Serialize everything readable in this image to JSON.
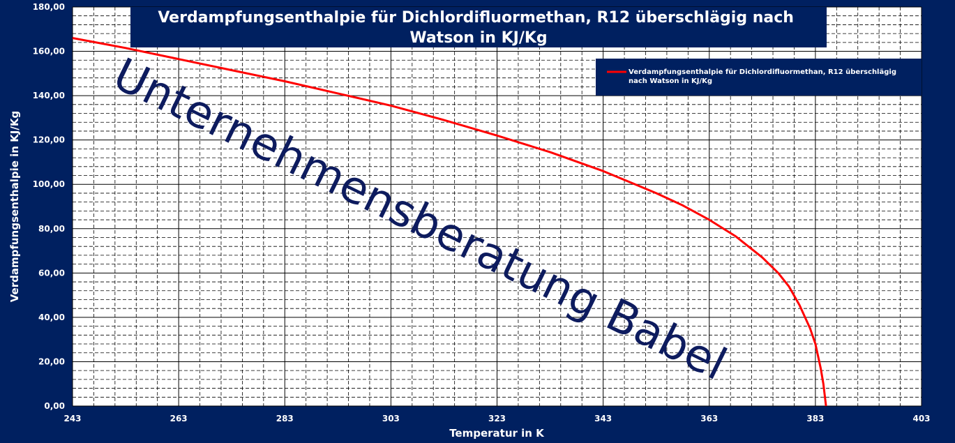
{
  "chart_data": {
    "type": "line",
    "title_lines": [
      "Verdampfungsenthalpie für Dichlordifluormethan, R12 überschlägig nach",
      "Watson in KJ/Kg"
    ],
    "xlabel": "Temperatur in  K",
    "ylabel": "Verdampfungsenthalpie  in KJ/Kg",
    "xlim": [
      243,
      403
    ],
    "ylim": [
      0,
      180
    ],
    "x_ticks": [
      243,
      263,
      283,
      303,
      323,
      343,
      363,
      383,
      403
    ],
    "y_ticks": [
      "0,00",
      "20,00",
      "40,00",
      "60,00",
      "80,00",
      "100,00",
      "120,00",
      "140,00",
      "160,00",
      "180,00"
    ],
    "grid": true,
    "legend_position": "top-right",
    "legend_lines": [
      "Verdampfungsenthalpie für Dichlordifluormethan, R12 überschlägig",
      "nach Watson in KJ/Kg"
    ],
    "series": [
      {
        "name": "Verdampfungsenthalpie für Dichlordifluormethan, R12 überschlägig nach Watson in KJ/Kg",
        "color": "#ff0000",
        "x": [
          243,
          253,
          263,
          273,
          283,
          293,
          303,
          313,
          323,
          333,
          343,
          348,
          353,
          358,
          363,
          368,
          373,
          376,
          378,
          380,
          382,
          383,
          384,
          384.5,
          385
        ],
        "y": [
          166,
          161.5,
          156.5,
          151.5,
          146.5,
          141,
          135.5,
          129,
          122,
          114.5,
          106,
          101,
          96,
          90.5,
          84,
          76.5,
          67,
          60,
          54,
          45.5,
          35,
          28,
          17,
          10,
          0
        ]
      }
    ]
  },
  "watermark": "Unternehmensberatung Babel",
  "colors": {
    "background": "#002060",
    "plot_area": "#ffffff",
    "line": "#ff0000",
    "watermark": "#0d1b5e"
  }
}
